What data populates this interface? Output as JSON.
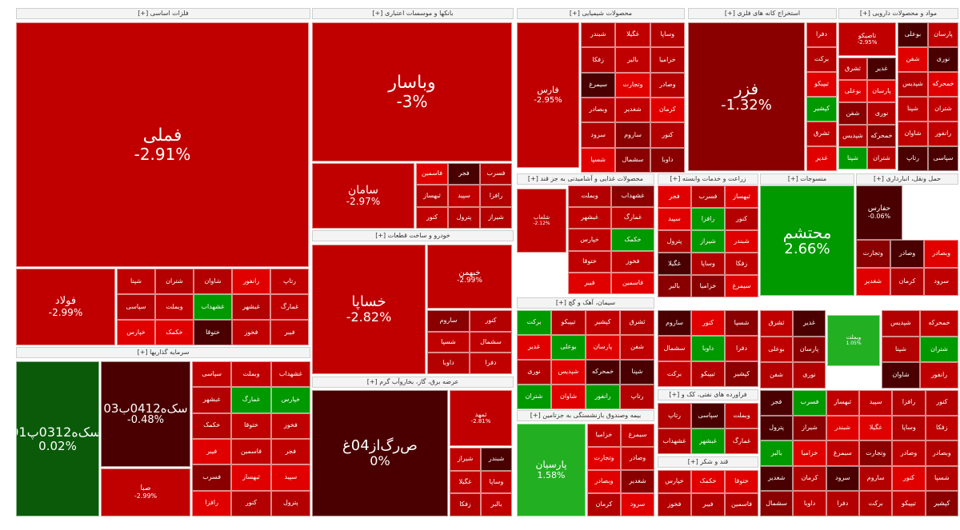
{
  "colors": {
    "strong_red": "#c00000",
    "red": "#b30000",
    "dark_red": "#8a0000",
    "maroon": "#4a0000",
    "bright_red": "#e00000",
    "green": "#009900",
    "light_green": "#22b022",
    "dark_green": "#0a5a0a",
    "header_bg": "#f4f4f4"
  },
  "chart_data": {
    "type": "heatmap",
    "title": "",
    "sectors": [
      {
        "name": "فلزات اساسی [+]"
      },
      {
        "name": "بانکها و موسسات اعتباری [+]"
      },
      {
        "name": "محصولات شیمیایی [+]"
      },
      {
        "name": "استخراج کانه های فلزی [+]"
      },
      {
        "name": "مواد و محصولات دارویی [+]"
      },
      {
        "name": "محصولات غذایی و آشامیدنی به جز قند [+]"
      },
      {
        "name": "زراعت و خدمات وابسته [+]"
      },
      {
        "name": "منسوجات [+]"
      },
      {
        "name": "حمل ونقل، انبارداری [+]"
      },
      {
        "name": "خودرو و ساخت قطعات [+]"
      },
      {
        "name": "سیمان، آهک و گچ [+]"
      },
      {
        "name": "عرضه برق، گاز، بخاروآب گرم [+]"
      },
      {
        "name": "سرمایه گذاریها [+]"
      },
      {
        "name": "بیمه وصندوق بازنشستگی به جزتامین [+]"
      },
      {
        "name": "قند و شکر [+]"
      },
      {
        "name": "فراورده های نفتی، کک و [+]"
      }
    ],
    "tiles": [
      {
        "label": "فملی",
        "value": -2.91
      },
      {
        "label": "فولاد",
        "value": -2.99
      },
      {
        "label": "وباسار",
        "value": -3
      },
      {
        "label": "سامان",
        "value": -2.97
      },
      {
        "label": "فارس",
        "value": -2.95
      },
      {
        "label": "فزر",
        "value": -1.32
      },
      {
        "label": "تاصیکو",
        "value": -2.95
      },
      {
        "label": "محتشم",
        "value": 2.66
      },
      {
        "label": "حفارس",
        "value": -0.06
      },
      {
        "label": "خساپا",
        "value": -2.82
      },
      {
        "label": "خبهمن",
        "value": -2.99
      },
      {
        "label": "ص‌رگ‌از04غ",
        "value": 0
      },
      {
        "label": "ثمهد",
        "value": -2.81
      },
      {
        "label": "پارسیان",
        "value": 1.58
      },
      {
        "label": "سک‌ه0412ب03",
        "value": -0.48
      },
      {
        "label": "تسک‌ه0312پ01",
        "value": 0.02
      },
      {
        "label": "صبا",
        "value": -2.99
      },
      {
        "label": "شلعاب",
        "value": -2.12
      },
      {
        "label": "وبملت",
        "value": 1.05
      }
    ]
  },
  "tiles_small": [
    "شپنا",
    "شتران",
    "شاوان",
    "رانفور",
    "رتاپ",
    "سپاسی",
    "وبملت",
    "غشهداب",
    "غبشهر",
    "غمارگ",
    "خپارس",
    "خکمک",
    "ختوقا",
    "فخوز",
    "فیبر",
    "فاسمین",
    "فجر",
    "فسرب",
    "ثبهساز",
    "سپید",
    "رافزا",
    "کنور",
    "پترول",
    "شیراز",
    "شبندر",
    "غگیلا",
    "وساپا",
    "زفکا",
    "بالبر",
    "خزامیا",
    "سیمرغ",
    "وتجارت",
    "وصادر",
    "وبصادر",
    "شغدیر",
    "کرمان",
    "سرود",
    "ساروم",
    "کنور",
    "شسپا",
    "سشمال",
    "داوبا",
    "دفرا",
    "برکت",
    "تیپیکو",
    "کپشیر",
    "ثشرق",
    "غدیر",
    "بوعلی",
    "پارسان",
    "شفن",
    "نوری",
    "شپدیس",
    "خمحرکه"
  ]
}
